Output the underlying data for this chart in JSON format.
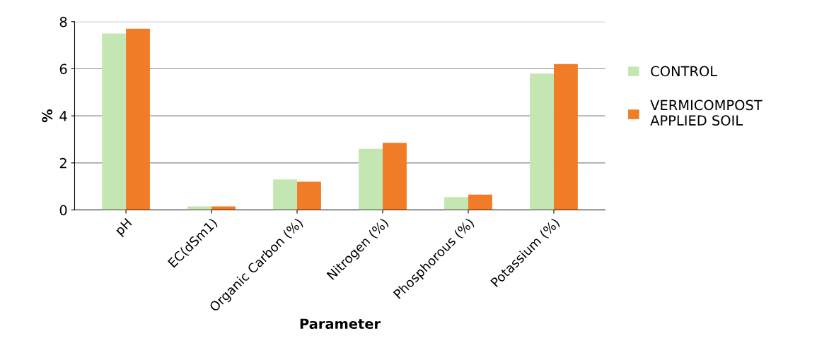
{
  "chart_data": {
    "type": "bar",
    "xlabel": "Parameter",
    "ylabel": "%",
    "categories": [
      "pH",
      "EC(dSm1)",
      "Organic Carbon (%)",
      "Nitrogen (%)",
      "Phosphorous (%)",
      "Potassium (%)"
    ],
    "series": [
      {
        "name": "CONTROL",
        "color": "#c4e6b2",
        "values": [
          7.5,
          0.15,
          1.3,
          2.6,
          0.55,
          5.8
        ]
      },
      {
        "name": "VERMICOMPOST APPLIED SOIL",
        "color": "#f07c28",
        "values": [
          7.7,
          0.15,
          1.2,
          2.85,
          0.65,
          6.2
        ]
      }
    ],
    "ylim": [
      0,
      8
    ],
    "yticks": [
      0,
      2,
      4,
      6,
      8
    ],
    "grid": "y",
    "legend": "right"
  }
}
